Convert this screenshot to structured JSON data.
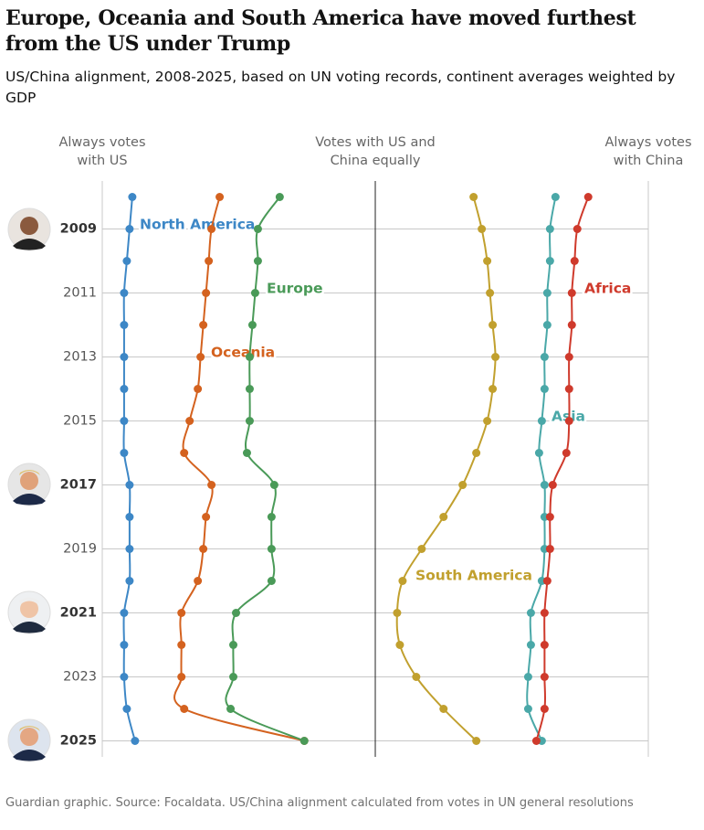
{
  "chart_data": {
    "type": "line",
    "title": "Europe, Oceania and South America have moved furthest from the US under Trump",
    "subtitle": "US/China alignment, 2008-2025, based on UN voting records, continent averages weighted by GDP",
    "source": "Guardian graphic. Source: Focaldata. US/China alignment calculated from votes in UN general resolutions",
    "y": [
      2008,
      2009,
      2010,
      2011,
      2012,
      2013,
      2014,
      2015,
      2016,
      2017,
      2018,
      2019,
      2020,
      2021,
      2022,
      2023,
      2024,
      2025
    ],
    "ylim": [
      2007.5,
      2025.5
    ],
    "y_inverted": true,
    "yticks": [
      2009,
      2011,
      2013,
      2015,
      2017,
      2019,
      2021,
      2023,
      2025
    ],
    "highlight_years": [
      2009,
      2017,
      2021,
      2025
    ],
    "xlim": [
      -1,
      1
    ],
    "xticks": [
      {
        "value": -1,
        "label": "Always votes with US"
      },
      {
        "value": 0,
        "label": "Votes with US and China equally"
      },
      {
        "value": 1,
        "label": "Always votes with China"
      }
    ],
    "grid": true,
    "series": [
      {
        "name": "North America",
        "color": "#3d87c6",
        "values": [
          -0.89,
          -0.9,
          -0.91,
          -0.92,
          -0.92,
          -0.92,
          -0.92,
          -0.92,
          -0.92,
          -0.9,
          -0.9,
          -0.9,
          -0.9,
          -0.92,
          -0.92,
          -0.92,
          -0.91,
          -0.88
        ]
      },
      {
        "name": "Oceania",
        "color": "#d4621f",
        "values": [
          -0.57,
          -0.6,
          -0.61,
          -0.62,
          -0.63,
          -0.64,
          -0.65,
          -0.68,
          -0.7,
          -0.6,
          -0.62,
          -0.63,
          -0.65,
          -0.71,
          -0.71,
          -0.71,
          -0.7,
          -0.26
        ]
      },
      {
        "name": "Europe",
        "color": "#4a9a58",
        "values": [
          -0.35,
          -0.43,
          -0.43,
          -0.44,
          -0.45,
          -0.46,
          -0.46,
          -0.46,
          -0.47,
          -0.37,
          -0.38,
          -0.38,
          -0.38,
          -0.51,
          -0.52,
          -0.52,
          -0.53,
          -0.26
        ]
      },
      {
        "name": "South America",
        "color": "#c1a02e",
        "values": [
          0.36,
          0.39,
          0.41,
          0.42,
          0.43,
          0.44,
          0.43,
          0.41,
          0.37,
          0.32,
          0.25,
          0.17,
          0.1,
          0.08,
          0.09,
          0.15,
          0.25,
          0.37
        ]
      },
      {
        "name": "Asia",
        "color": "#4aa8a8",
        "values": [
          0.66,
          0.64,
          0.64,
          0.63,
          0.63,
          0.62,
          0.62,
          0.61,
          0.6,
          0.62,
          0.62,
          0.62,
          0.61,
          0.57,
          0.57,
          0.56,
          0.56,
          0.61
        ]
      },
      {
        "name": "Africa",
        "color": "#cf3a2c",
        "values": [
          0.78,
          0.74,
          0.73,
          0.72,
          0.72,
          0.71,
          0.71,
          0.71,
          0.7,
          0.65,
          0.64,
          0.64,
          0.63,
          0.62,
          0.62,
          0.62,
          0.62,
          0.59
        ]
      }
    ]
  }
}
